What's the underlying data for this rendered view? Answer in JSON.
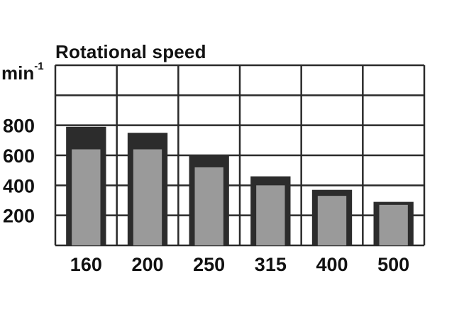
{
  "chart_data": {
    "type": "bar",
    "title": "Rotational speed",
    "ylabel_base": "min",
    "ylabel_exp": "-1",
    "categories": [
      "160",
      "200",
      "250",
      "315",
      "400",
      "500"
    ],
    "series": [
      {
        "values": [
          790,
          750,
          600,
          460,
          370,
          290
        ]
      },
      {
        "values": [
          640,
          640,
          520,
          400,
          330,
          270
        ]
      }
    ],
    "yticks": [
      "200",
      "400",
      "600",
      "800"
    ],
    "ylim": [
      0,
      1200
    ],
    "grid": true,
    "colors": {
      "outer": "#2c2c2c",
      "inner": "#9a9a9a",
      "grid": "#2a2a2a"
    }
  }
}
